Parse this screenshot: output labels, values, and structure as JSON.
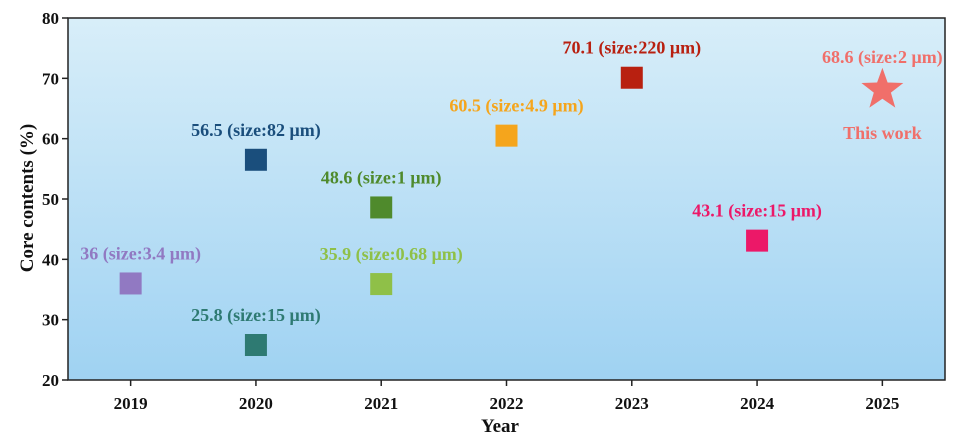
{
  "chart_data": {
    "type": "scatter",
    "title": "",
    "xlabel": "Year",
    "ylabel": "Core contents (%)",
    "xlim": [
      2018.5,
      2025.5
    ],
    "ylim": [
      20,
      80
    ],
    "xticks": [
      2019,
      2020,
      2021,
      2022,
      2023,
      2024,
      2025
    ],
    "xtick_labels": [
      "2019",
      "2020",
      "2021",
      "2022",
      "2023",
      "2024",
      "2025"
    ],
    "yticks": [
      20,
      30,
      40,
      50,
      60,
      70,
      80
    ],
    "ytick_labels": [
      "20",
      "30",
      "40",
      "50",
      "60",
      "70",
      "80"
    ],
    "background": {
      "top": "#d8eef9",
      "bottom": "#9fd2f2"
    },
    "points": [
      {
        "x": 2019,
        "y": 36,
        "marker": "square",
        "color": "#9179c2",
        "label": "36 (size:3.4 μm)"
      },
      {
        "x": 2020,
        "y": 56.5,
        "marker": "square",
        "color": "#1a4e7c",
        "label": "56.5 (size:82 μm)"
      },
      {
        "x": 2020,
        "y": 25.8,
        "marker": "square",
        "color": "#2e7a72",
        "label": "25.8 (size:15 μm)"
      },
      {
        "x": 2021,
        "y": 48.6,
        "marker": "square",
        "color": "#4f8a2c",
        "label": "48.6 (size:1 μm)"
      },
      {
        "x": 2021,
        "y": 35.9,
        "marker": "square",
        "color": "#8fc048",
        "label": "35.9 (size:0.68 μm)"
      },
      {
        "x": 2022,
        "y": 60.5,
        "marker": "square",
        "color": "#f5a51c",
        "label": "60.5 (size:4.9 μm)"
      },
      {
        "x": 2023,
        "y": 70.1,
        "marker": "square",
        "color": "#b82010",
        "label": "70.1 (size:220 μm)"
      },
      {
        "x": 2024,
        "y": 43.1,
        "marker": "square",
        "color": "#ec1868",
        "label": "43.1 (size:15 μm)"
      },
      {
        "x": 2025,
        "y": 68.6,
        "marker": "star",
        "color": "#f06f6a",
        "label": "68.6 (size:2 μm)",
        "note": "This work"
      }
    ]
  }
}
